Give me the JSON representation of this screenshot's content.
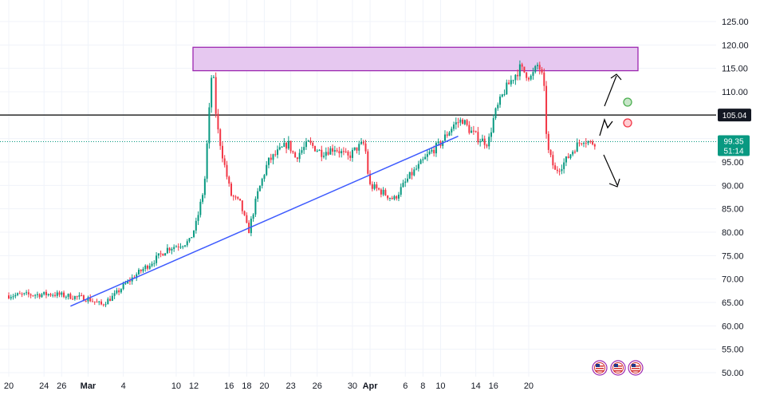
{
  "chart_data": {
    "type": "candlestick",
    "x_tick_labels": [
      "20",
      "24",
      "26",
      "Mar",
      "4",
      "10",
      "12",
      "16",
      "18",
      "20",
      "23",
      "26",
      "30",
      "Apr",
      "6",
      "8",
      "10",
      "14",
      "16",
      "20"
    ],
    "y_tick_labels": [
      "125.00",
      "120.00",
      "115.00",
      "110.00",
      "95.00",
      "90.00",
      "85.00",
      "80.00",
      "75.00",
      "70.00",
      "65.00",
      "60.00",
      "55.00",
      "50.00"
    ],
    "ylim": [
      49,
      126
    ],
    "horizontal_line": {
      "value": 105.04,
      "label": "105.04",
      "color": "#000000"
    },
    "current_price": {
      "value": 99.35,
      "label": "99.35",
      "countdown": "51:14",
      "color": "#089981"
    },
    "resistance_zone": {
      "low": 114.5,
      "high": 119.5,
      "fill": "#e6c8f0",
      "stroke": "#9c27b0"
    },
    "trendline": {
      "from_date": "Feb 27",
      "from_value": 64.2,
      "to_date": "Apr 12",
      "to_value": 100.5,
      "color": "#3d5afe"
    },
    "colors": {
      "up": "#089981",
      "down": "#f23645",
      "grid": "#f0f3fa",
      "axis_text": "#131722"
    },
    "markers": [
      {
        "name": "bullish-target-circle",
        "color": "#4caf50"
      },
      {
        "name": "bearish-target-circle",
        "color": "#f23645"
      }
    ],
    "event_icons": [
      "us-flag-event-icon",
      "us-flag-event-icon",
      "us-flag-event-icon"
    ]
  }
}
